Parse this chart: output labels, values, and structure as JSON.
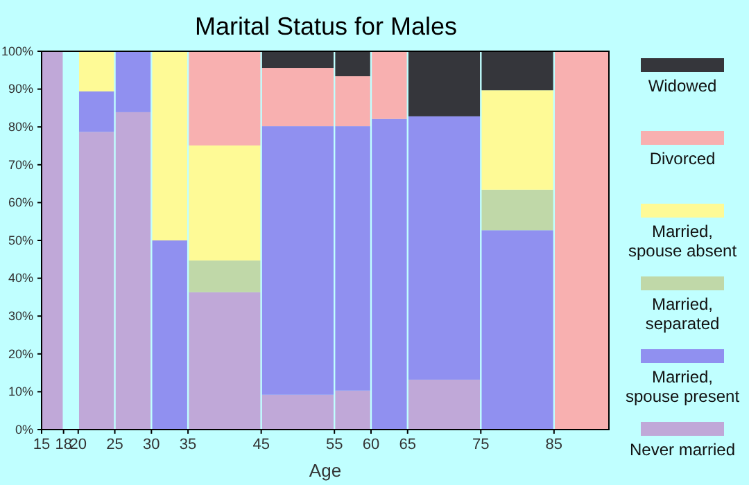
{
  "chart_data": {
    "type": "bar",
    "stacked": true,
    "title": "Marital Status for Males",
    "xlabel": "Age",
    "x": [
      16.5,
      22.5,
      27.5,
      32.5,
      40,
      50,
      57.5,
      62.5,
      70,
      80,
      88.75
    ],
    "xlim": [
      15,
      92.5
    ],
    "xticks": [
      15,
      18,
      20,
      25,
      30,
      35,
      45,
      55,
      60,
      65,
      75,
      85
    ],
    "ylim": [
      0,
      100
    ],
    "yticks": [
      {
        "value": 0,
        "label": "0%"
      },
      {
        "value": 10,
        "label": "10%"
      },
      {
        "value": 20,
        "label": "20%"
      },
      {
        "value": 30,
        "label": "30%"
      },
      {
        "value": 40,
        "label": "40%"
      },
      {
        "value": 50,
        "label": "50%"
      },
      {
        "value": 60,
        "label": "60%"
      },
      {
        "value": 70,
        "label": "70%"
      },
      {
        "value": 80,
        "label": "80%"
      },
      {
        "value": 90,
        "label": "90%"
      },
      {
        "value": 100,
        "label": "100%"
      }
    ],
    "legend": "right",
    "grid": false,
    "series": [
      {
        "name": "Never married",
        "color": "#c0a8d8",
        "values": [
          100,
          78.7,
          83.9,
          0,
          36.3,
          9.2,
          10.3,
          0,
          13.2,
          0,
          0
        ]
      },
      {
        "name": "Married, spouse present",
        "color": "#9090f0",
        "values": [
          0,
          10.7,
          16.1,
          50,
          0,
          71,
          69.9,
          82.1,
          69.6,
          52.7,
          0
        ]
      },
      {
        "name": "Married, separated",
        "color": "#c0d8a8",
        "values": [
          0,
          0,
          0,
          0,
          8.4,
          0,
          0,
          0,
          0,
          10.7,
          0
        ]
      },
      {
        "name": "Married, spouse absent",
        "color": "#fefa96",
        "values": [
          0,
          10.6,
          0,
          50,
          30.4,
          0,
          0,
          0,
          0,
          26.3,
          0
        ]
      },
      {
        "name": "Divorced",
        "color": "#f8b0b0",
        "values": [
          0,
          0,
          0,
          0,
          24.9,
          15.4,
          13.2,
          17.9,
          0,
          0,
          100
        ]
      },
      {
        "name": "Widowed",
        "color": "#35363b",
        "values": [
          0,
          0,
          0,
          0,
          0,
          4.4,
          6.6,
          0,
          17.2,
          10.3,
          0
        ]
      }
    ]
  }
}
